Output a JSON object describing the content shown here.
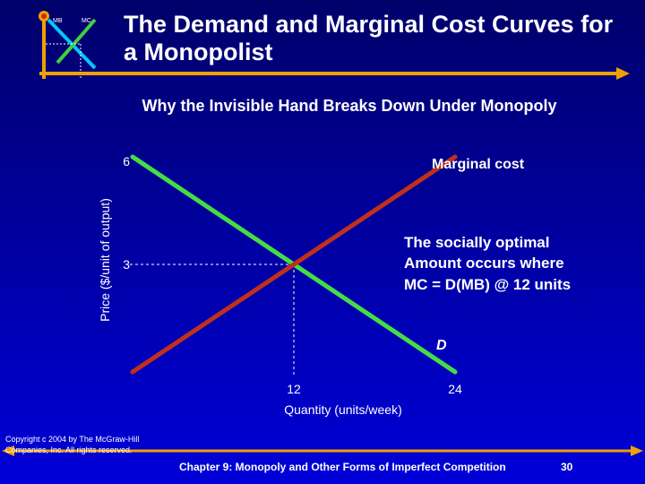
{
  "header": {
    "title": "The Demand and Marginal Cost Curves for a Monopolist",
    "logo_mb": "MB",
    "logo_mc": "MC"
  },
  "subtitle": "Why the Invisible Hand Breaks Down Under Monopoly",
  "chart_data": {
    "type": "line",
    "title": "",
    "xlabel": "Quantity (units/week)",
    "ylabel": "Price ($/unit of output)",
    "xlim": [
      0,
      24
    ],
    "ylim": [
      0,
      6
    ],
    "x_ticks": [
      {
        "value": 12,
        "label": "12"
      },
      {
        "value": 24,
        "label": "24"
      }
    ],
    "y_ticks": [
      {
        "value": 6,
        "label": "6"
      },
      {
        "value": 3,
        "label": "3"
      }
    ],
    "series": [
      {
        "name": "Marginal cost",
        "color": "#c0301a",
        "points": [
          [
            0,
            0
          ],
          [
            24,
            6
          ]
        ]
      },
      {
        "name": "D",
        "color": "#44dd44",
        "points": [
          [
            0,
            6
          ],
          [
            24,
            0
          ]
        ]
      }
    ],
    "intersection": {
      "x": 12,
      "y": 3
    },
    "annotation": {
      "line1": "The socially optimal",
      "line2": "Amount occurs where",
      "line3": "MC = D(MB) @ 12 units"
    },
    "grid": false
  },
  "footer": {
    "copyright": "Copyright c 2004 by The McGraw-Hill Companies, Inc. All rights reserved.",
    "chapter": "Chapter 9: Monopoly and Other Forms of Imperfect Competition",
    "page": "30"
  },
  "colors": {
    "background_top": "#00006a",
    "background_bottom": "#0000d8",
    "header_rule": "#f0a000",
    "mc_line": "#c0301a",
    "demand_line": "#44dd44"
  }
}
